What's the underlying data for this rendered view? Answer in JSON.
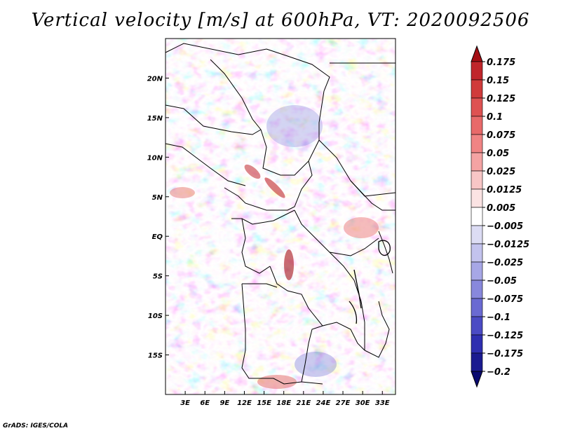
{
  "title": "Vertical velocity [m/s] at 600hPa, VT: 2020092506",
  "credit": "GrADS: IGES/COLA",
  "map": {
    "lat_labels": [
      "20N",
      "15N",
      "10N",
      "5N",
      "EQ",
      "5S",
      "10S",
      "15S"
    ],
    "lat_values": [
      20,
      15,
      10,
      5,
      0,
      -5,
      -10,
      -15
    ],
    "lon_labels": [
      "3E",
      "6E",
      "9E",
      "12E",
      "15E",
      "18E",
      "21E",
      "24E",
      "27E",
      "30E",
      "33E"
    ],
    "lon_values": [
      3,
      6,
      9,
      12,
      15,
      18,
      21,
      24,
      27,
      30,
      33
    ],
    "lat_range": [
      -20,
      25
    ],
    "lon_range": [
      0,
      35
    ]
  },
  "colorbar": {
    "labels": [
      "0.175",
      "0.15",
      "0.125",
      "0.1",
      "0.075",
      "0.05",
      "0.025",
      "0.0125",
      "0.005",
      "−0.005",
      "−0.0125",
      "−0.025",
      "−0.05",
      "−0.075",
      "−0.1",
      "−0.125",
      "−0.175",
      "−0.2"
    ],
    "colors": [
      "#a50f15",
      "#c0262b",
      "#d03b3b",
      "#de5252",
      "#e86a6a",
      "#f08484",
      "#f4a3a3",
      "#f8c6c6",
      "#fbe3e3",
      "#ffffff",
      "#dcdcf4",
      "#c3c3ee",
      "#a7a7e6",
      "#8888dc",
      "#6a6ad2",
      "#4b4bc4",
      "#2f2fb0",
      "#1b1b90",
      "#0a0a70"
    ]
  }
}
